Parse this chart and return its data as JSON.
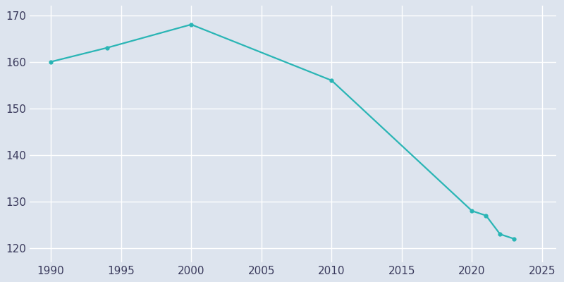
{
  "years": [
    1990,
    1994,
    2000,
    2010,
    2020,
    2021,
    2022,
    2023
  ],
  "population": [
    160,
    163,
    168,
    156,
    128,
    127,
    123,
    122
  ],
  "line_color": "#2ab5b5",
  "marker": "o",
  "marker_size": 3.5,
  "linewidth": 1.6,
  "background_color": "#dde4ee",
  "grid_color": "#c8d0df",
  "xlabel": "",
  "ylabel": "",
  "xlim": [
    1988.5,
    2026
  ],
  "ylim": [
    117,
    172
  ],
  "xticks": [
    1990,
    1995,
    2000,
    2005,
    2010,
    2015,
    2020,
    2025
  ],
  "yticks": [
    120,
    130,
    140,
    150,
    160,
    170
  ],
  "tick_label_color": "#3a3a5c",
  "tick_fontsize": 11
}
